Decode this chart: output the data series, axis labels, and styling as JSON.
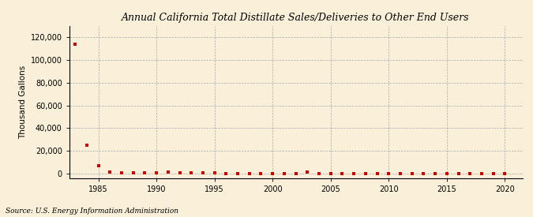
{
  "title": "Annual California Total Distillate Sales/Deliveries to Other End Users",
  "ylabel": "Thousand Gallons",
  "source": "Source: U.S. Energy Information Administration",
  "background_color": "#faefd9",
  "grid_color": "#aaaaaa",
  "marker_color": "#cc0000",
  "xlim": [
    1982.5,
    2021.5
  ],
  "ylim": [
    -4000,
    130000
  ],
  "yticks": [
    0,
    20000,
    40000,
    60000,
    80000,
    100000,
    120000
  ],
  "xticks": [
    1985,
    1990,
    1995,
    2000,
    2005,
    2010,
    2015,
    2020
  ],
  "years": [
    1983,
    1984,
    1985,
    1986,
    1987,
    1988,
    1989,
    1990,
    1991,
    1992,
    1993,
    1994,
    1995,
    1996,
    1997,
    1998,
    1999,
    2000,
    2001,
    2002,
    2003,
    2004,
    2005,
    2006,
    2007,
    2008,
    2009,
    2010,
    2011,
    2012,
    2013,
    2014,
    2015,
    2016,
    2017,
    2018,
    2019,
    2020
  ],
  "values": [
    114000,
    25000,
    6500,
    1200,
    600,
    400,
    300,
    200,
    1400,
    250,
    180,
    250,
    180,
    100,
    120,
    100,
    100,
    100,
    100,
    100,
    1100,
    100,
    100,
    100,
    100,
    100,
    100,
    100,
    100,
    100,
    100,
    100,
    100,
    100,
    100,
    100,
    100,
    100
  ]
}
